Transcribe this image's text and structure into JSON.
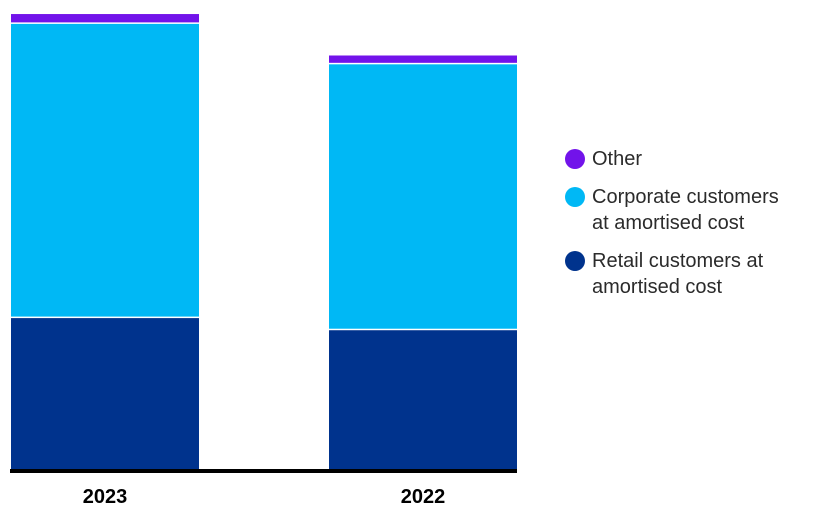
{
  "chart_data": {
    "type": "bar",
    "stacked": true,
    "categories": [
      "2023",
      "2022"
    ],
    "series": [
      {
        "name": "Retail customers at\namortised cost",
        "color": "#00338D",
        "values": [
          151,
          139
        ]
      },
      {
        "name": "Corporate customers\nat amortised cost",
        "color": "#00B8F5",
        "values": [
          291,
          263
        ]
      },
      {
        "name": "Other",
        "color": "#7213EA",
        "values": [
          9,
          8
        ]
      }
    ],
    "legend_order": [
      2,
      1,
      0
    ],
    "legend_position": "right",
    "ylim": [
      0,
      455
    ],
    "grid": false,
    "axis_color": "#000000"
  }
}
